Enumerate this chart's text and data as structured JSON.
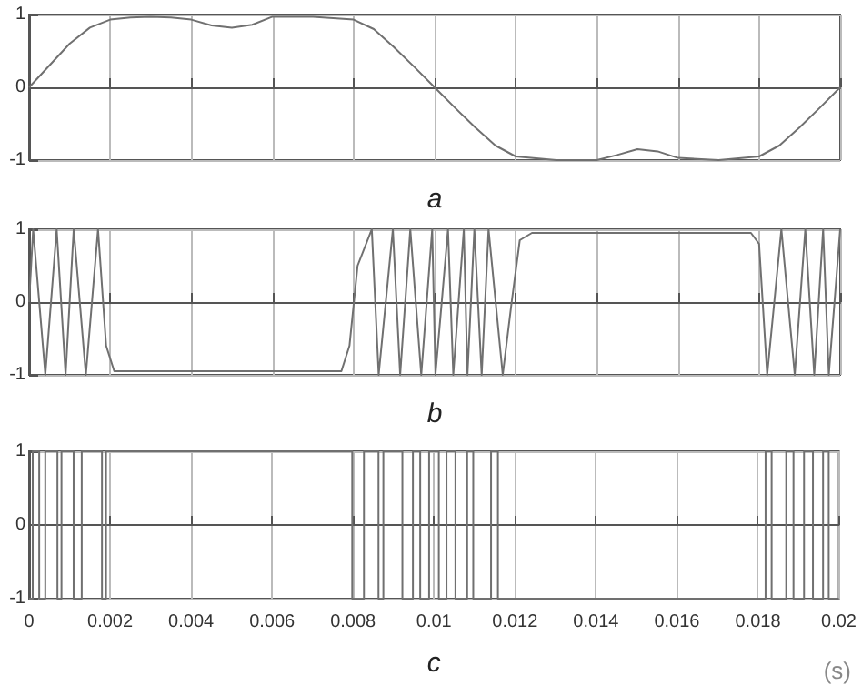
{
  "chart_data": [
    {
      "type": "line",
      "xlabel": "a",
      "xlim": [
        0,
        0.02
      ],
      "xticks": [
        0,
        0.002,
        0.004,
        0.006,
        0.008,
        0.01,
        0.012,
        0.014,
        0.016,
        0.018,
        0.02
      ],
      "ylim": [
        -1,
        1
      ],
      "yticks": [
        -1,
        0,
        1
      ],
      "grid": true,
      "tick_labels": "y",
      "marker": "none",
      "series": [
        {
          "color": "#707070",
          "x": [
            0,
            0.0005,
            0.001,
            0.0015,
            0.002,
            0.0025,
            0.003,
            0.0035,
            0.004,
            0.0045,
            0.005,
            0.0055,
            0.006,
            0.007,
            0.008,
            0.0085,
            0.009,
            0.0095,
            0.01,
            0.0105,
            0.011,
            0.0115,
            0.012,
            0.013,
            0.014,
            0.0145,
            0.015,
            0.0155,
            0.016,
            0.017,
            0.018,
            0.0185,
            0.019,
            0.0195,
            0.02
          ],
          "values": [
            0,
            0.3,
            0.6,
            0.82,
            0.93,
            0.96,
            0.97,
            0.96,
            0.93,
            0.85,
            0.82,
            0.86,
            0.97,
            0.97,
            0.93,
            0.8,
            0.55,
            0.28,
            0,
            -0.28,
            -0.55,
            -0.8,
            -0.95,
            -1,
            -1,
            -0.93,
            -0.85,
            -0.88,
            -0.97,
            -1,
            -0.95,
            -0.8,
            -0.55,
            -0.28,
            0
          ]
        }
      ]
    },
    {
      "type": "line",
      "xlabel": "b",
      "xlim": [
        0,
        0.02
      ],
      "xticks": [
        0,
        0.002,
        0.004,
        0.006,
        0.008,
        0.01,
        0.012,
        0.014,
        0.016,
        0.018,
        0.02
      ],
      "ylim": [
        -1,
        1
      ],
      "yticks": [
        -1,
        0,
        1
      ],
      "grid": true,
      "tick_labels": "y",
      "marker": "none",
      "series": [
        {
          "color": "#707070",
          "x": [
            0,
            0.0001,
            0.0004,
            0.00068,
            0.0009,
            0.0011,
            0.0014,
            0.0017,
            0.0019,
            0.0021,
            0.0077,
            0.0079,
            0.0081,
            0.00845,
            0.00862,
            0.00897,
            0.00915,
            0.0094,
            0.00967,
            0.00994,
            0.01002,
            0.01033,
            0.01046,
            0.01072,
            0.01081,
            0.01098,
            0.01116,
            0.01133,
            0.01168,
            0.0119,
            0.0121,
            0.0124,
            0.0178,
            0.018,
            0.0182,
            0.01855,
            0.01888,
            0.01914,
            0.01936,
            0.01958,
            0.01972,
            0.02
          ],
          "values": [
            0,
            1,
            -1,
            1,
            -1,
            1,
            -1,
            1,
            -0.6,
            -0.95,
            -0.95,
            -0.6,
            0.5,
            1,
            -1,
            1,
            -1,
            1,
            -1,
            1,
            -1,
            1,
            -1,
            1,
            -1,
            1,
            -1,
            1,
            -1,
            0,
            0.85,
            0.95,
            0.95,
            0.8,
            -1,
            1,
            -1,
            1,
            -1,
            1,
            -1,
            1
          ]
        }
      ]
    },
    {
      "type": "step",
      "xlabel": "c",
      "annotations": [
        "(s)"
      ],
      "xlim": [
        0,
        0.02
      ],
      "xticks": [
        0,
        0.002,
        0.004,
        0.006,
        0.008,
        0.01,
        0.012,
        0.014,
        0.016,
        0.018,
        0.02
      ],
      "ylim": [
        -1,
        1
      ],
      "yticks": [
        -1,
        0,
        1
      ],
      "grid": true,
      "marker": "none",
      "series": [
        {
          "color": "#707070",
          "x": [
            0,
            9e-05,
            0.00025,
            0.0004,
            0.0007,
            0.0008,
            0.0011,
            0.0013,
            0.0018,
            0.0019,
            0.00798,
            0.00827,
            0.00863,
            0.00875,
            0.00922,
            0.00948,
            0.00966,
            0.00988,
            0.01012,
            0.01031,
            0.01053,
            0.01082,
            0.01097,
            0.01141,
            0.01158,
            0.01819,
            0.01834,
            0.0187,
            0.01888,
            0.01914,
            0.01936,
            0.01961,
            0.01975,
            0.02
          ],
          "values": [
            -1,
            1,
            -1,
            1,
            -1,
            1,
            -1,
            1,
            -1,
            1,
            -1,
            1,
            -1,
            1,
            -1,
            1,
            -1,
            1,
            -1,
            1,
            -1,
            1,
            -1,
            1,
            -1,
            1,
            -1,
            1,
            -1,
            1,
            -1,
            1,
            -1,
            -1
          ]
        }
      ]
    }
  ]
}
